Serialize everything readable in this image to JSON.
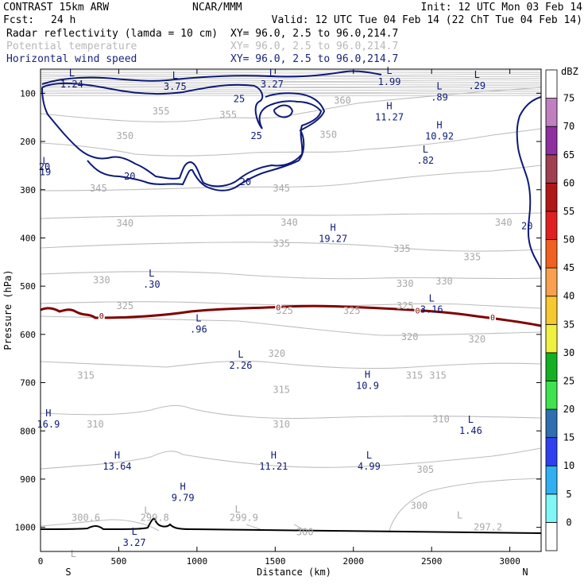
{
  "header": {
    "model": "CONTRAST 15km ARW",
    "org": "NCAR/MMM",
    "init": "Init: 12 UTC Mon 03 Feb 14",
    "fcst_label": "Fcst:",
    "fcst_value": "24 h",
    "valid": "Valid: 12 UTC Tue 04 Feb 14 (22 ChT Tue 04 Feb 14)",
    "fields": [
      {
        "name": "Radar reflectivity (lamda = 10 cm)",
        "xy": "XY=  96.0,  2.5 to  96.0,214.7",
        "color": "#000000"
      },
      {
        "name": "Potential temperature",
        "xy": "XY=  96.0,  2.5 to  96.0,214.7",
        "color": "#b8b8b8"
      },
      {
        "name": "Horizontal wind speed",
        "xy": "XY=  96.0,  2.5 to  96.0,214.7",
        "color": "#1a237e"
      }
    ]
  },
  "chart_data": {
    "type": "cross-section contour",
    "title": "Vertical cross-section",
    "xlabel": "Distance (km)",
    "ylabel": "Pressure (hPa)",
    "xlim": [
      0,
      3200
    ],
    "ylim": [
      1050,
      50
    ],
    "x_ticks": [
      0,
      500,
      1000,
      1500,
      2000,
      2500,
      3000
    ],
    "y_ticks": [
      100,
      200,
      300,
      400,
      500,
      600,
      700,
      800,
      900,
      1000
    ],
    "end_labels": {
      "left": "S",
      "right": "N"
    },
    "colorbar": {
      "unit": "dBZ",
      "levels": [
        0,
        5,
        10,
        15,
        20,
        25,
        30,
        35,
        40,
        45,
        50,
        55,
        60,
        65,
        70,
        75
      ],
      "colors": [
        "#ffffff",
        "#7ff7f7",
        "#30b0f0",
        "#3040f0",
        "#2f6fb0",
        "#3fe34f",
        "#13b023",
        "#f0f040",
        "#f8c830",
        "#f8a050",
        "#f06020",
        "#e02020",
        "#b01818",
        "#a04050",
        "#9030a0",
        "#c080c0",
        "#ffffff"
      ]
    },
    "theta_labels": [
      {
        "text": "360",
        "x": 1930,
        "p": 115
      },
      {
        "text": "355",
        "x": 770,
        "p": 137
      },
      {
        "text": "355",
        "x": 1200,
        "p": 145
      },
      {
        "text": "350",
        "x": 540,
        "p": 188
      },
      {
        "text": "350",
        "x": 1840,
        "p": 186
      },
      {
        "text": "345",
        "x": 370,
        "p": 297
      },
      {
        "text": "345",
        "x": 1540,
        "p": 297
      },
      {
        "text": "340",
        "x": 540,
        "p": 370
      },
      {
        "text": "340",
        "x": 1590,
        "p": 368
      },
      {
        "text": "340",
        "x": 2960,
        "p": 368
      },
      {
        "text": "335",
        "x": 1540,
        "p": 412
      },
      {
        "text": "335",
        "x": 2310,
        "p": 422
      },
      {
        "text": "335",
        "x": 2760,
        "p": 440
      },
      {
        "text": "330",
        "x": 390,
        "p": 487
      },
      {
        "text": "330",
        "x": 2330,
        "p": 495
      },
      {
        "text": "330",
        "x": 2580,
        "p": 490
      },
      {
        "text": "325",
        "x": 540,
        "p": 541
      },
      {
        "text": "325",
        "x": 1560,
        "p": 551
      },
      {
        "text": "325",
        "x": 1990,
        "p": 551
      },
      {
        "text": "325",
        "x": 2330,
        "p": 541
      },
      {
        "text": "320",
        "x": 1510,
        "p": 640
      },
      {
        "text": "320",
        "x": 2360,
        "p": 605
      },
      {
        "text": "320",
        "x": 2790,
        "p": 610
      },
      {
        "text": "315",
        "x": 290,
        "p": 685
      },
      {
        "text": "315",
        "x": 1540,
        "p": 715
      },
      {
        "text": "315",
        "x": 2390,
        "p": 685
      },
      {
        "text": "315",
        "x": 2540,
        "p": 685
      },
      {
        "text": "310",
        "x": 350,
        "p": 786
      },
      {
        "text": "310",
        "x": 1540,
        "p": 786
      },
      {
        "text": "310",
        "x": 2560,
        "p": 776
      },
      {
        "text": "305",
        "x": 2460,
        "p": 880
      },
      {
        "text": "300",
        "x": 2420,
        "p": 955
      },
      {
        "text": "300.6",
        "x": 290,
        "p": 980
      },
      {
        "text": "299.8",
        "x": 730,
        "p": 980
      },
      {
        "text": "299.9",
        "x": 1300,
        "p": 980
      },
      {
        "text": "297.2",
        "x": 2860,
        "p": 1000
      },
      {
        "text": "300",
        "x": 1690,
        "p": 1010
      }
    ],
    "theta_extremes": [
      {
        "kind": "L",
        "x": 210,
        "p": 1055,
        "value": ""
      },
      {
        "kind": "L",
        "x": 680,
        "p": 965,
        "value": ""
      },
      {
        "kind": "L",
        "x": 1260,
        "p": 963,
        "value": ""
      },
      {
        "kind": "L",
        "x": 2680,
        "p": 975,
        "value": ""
      }
    ],
    "wind_speed_contours": [
      {
        "level": 20,
        "labels": [
          {
            "x": 570,
            "p": 272
          },
          {
            "x": 1310,
            "p": 284
          },
          {
            "x": 3110,
            "p": 375
          },
          {
            "x": 0,
            "p": 253
          }
        ]
      },
      {
        "level": 25,
        "labels": [
          {
            "x": 1270,
            "p": 112
          },
          {
            "x": 1380,
            "p": 188
          }
        ]
      }
    ],
    "wind_extremes": [
      {
        "kind": "L",
        "x": 200,
        "p": 65,
        "value": "1.24"
      },
      {
        "kind": "L",
        "x": 860,
        "p": 70,
        "value": "3.75"
      },
      {
        "kind": "L",
        "x": 1480,
        "p": 65,
        "value": "3.27"
      },
      {
        "kind": "L",
        "x": 2230,
        "p": 60,
        "value": "1.99"
      },
      {
        "kind": "L",
        "x": 2550,
        "p": 92,
        "value": ".89"
      },
      {
        "kind": "L",
        "x": 2790,
        "p": 68,
        "value": ".29"
      },
      {
        "kind": "H",
        "x": 2230,
        "p": 133,
        "value": "11.27"
      },
      {
        "kind": "H",
        "x": 2550,
        "p": 173,
        "value": "10.92"
      },
      {
        "kind": "L",
        "x": 2460,
        "p": 223,
        "value": ".82"
      },
      {
        "kind": "L",
        "x": 0,
        "p": 247,
        "value": "19"
      },
      {
        "kind": "H",
        "x": 1870,
        "p": 385,
        "value": "19.27"
      },
      {
        "kind": "L",
        "x": 710,
        "p": 480,
        "value": ".30"
      },
      {
        "kind": "L",
        "x": 2500,
        "p": 532,
        "value": "3.16"
      },
      {
        "kind": "L",
        "x": 1010,
        "p": 573,
        "value": ".96"
      },
      {
        "kind": "L",
        "x": 1280,
        "p": 648,
        "value": "2.26"
      },
      {
        "kind": "H",
        "x": 2090,
        "p": 690,
        "value": "10.9"
      },
      {
        "kind": "H",
        "x": 50,
        "p": 770,
        "value": "16.9"
      },
      {
        "kind": "L",
        "x": 2750,
        "p": 783,
        "value": "1.46"
      },
      {
        "kind": "H",
        "x": 490,
        "p": 857,
        "value": "13.64"
      },
      {
        "kind": "H",
        "x": 1490,
        "p": 857,
        "value": "11.21"
      },
      {
        "kind": "L",
        "x": 2100,
        "p": 857,
        "value": "4.99"
      },
      {
        "kind": "H",
        "x": 910,
        "p": 922,
        "value": "9.79"
      },
      {
        "kind": "L",
        "x": 600,
        "p": 1015,
        "value": "3.27"
      }
    ],
    "zero_line_labels": [
      {
        "text": "0",
        "x": 390,
        "p": 562
      },
      {
        "text": "0",
        "x": 1520,
        "p": 545
      },
      {
        "text": "0",
        "x": 2410,
        "p": 552
      },
      {
        "text": "0",
        "x": 2890,
        "p": 566
      }
    ]
  }
}
